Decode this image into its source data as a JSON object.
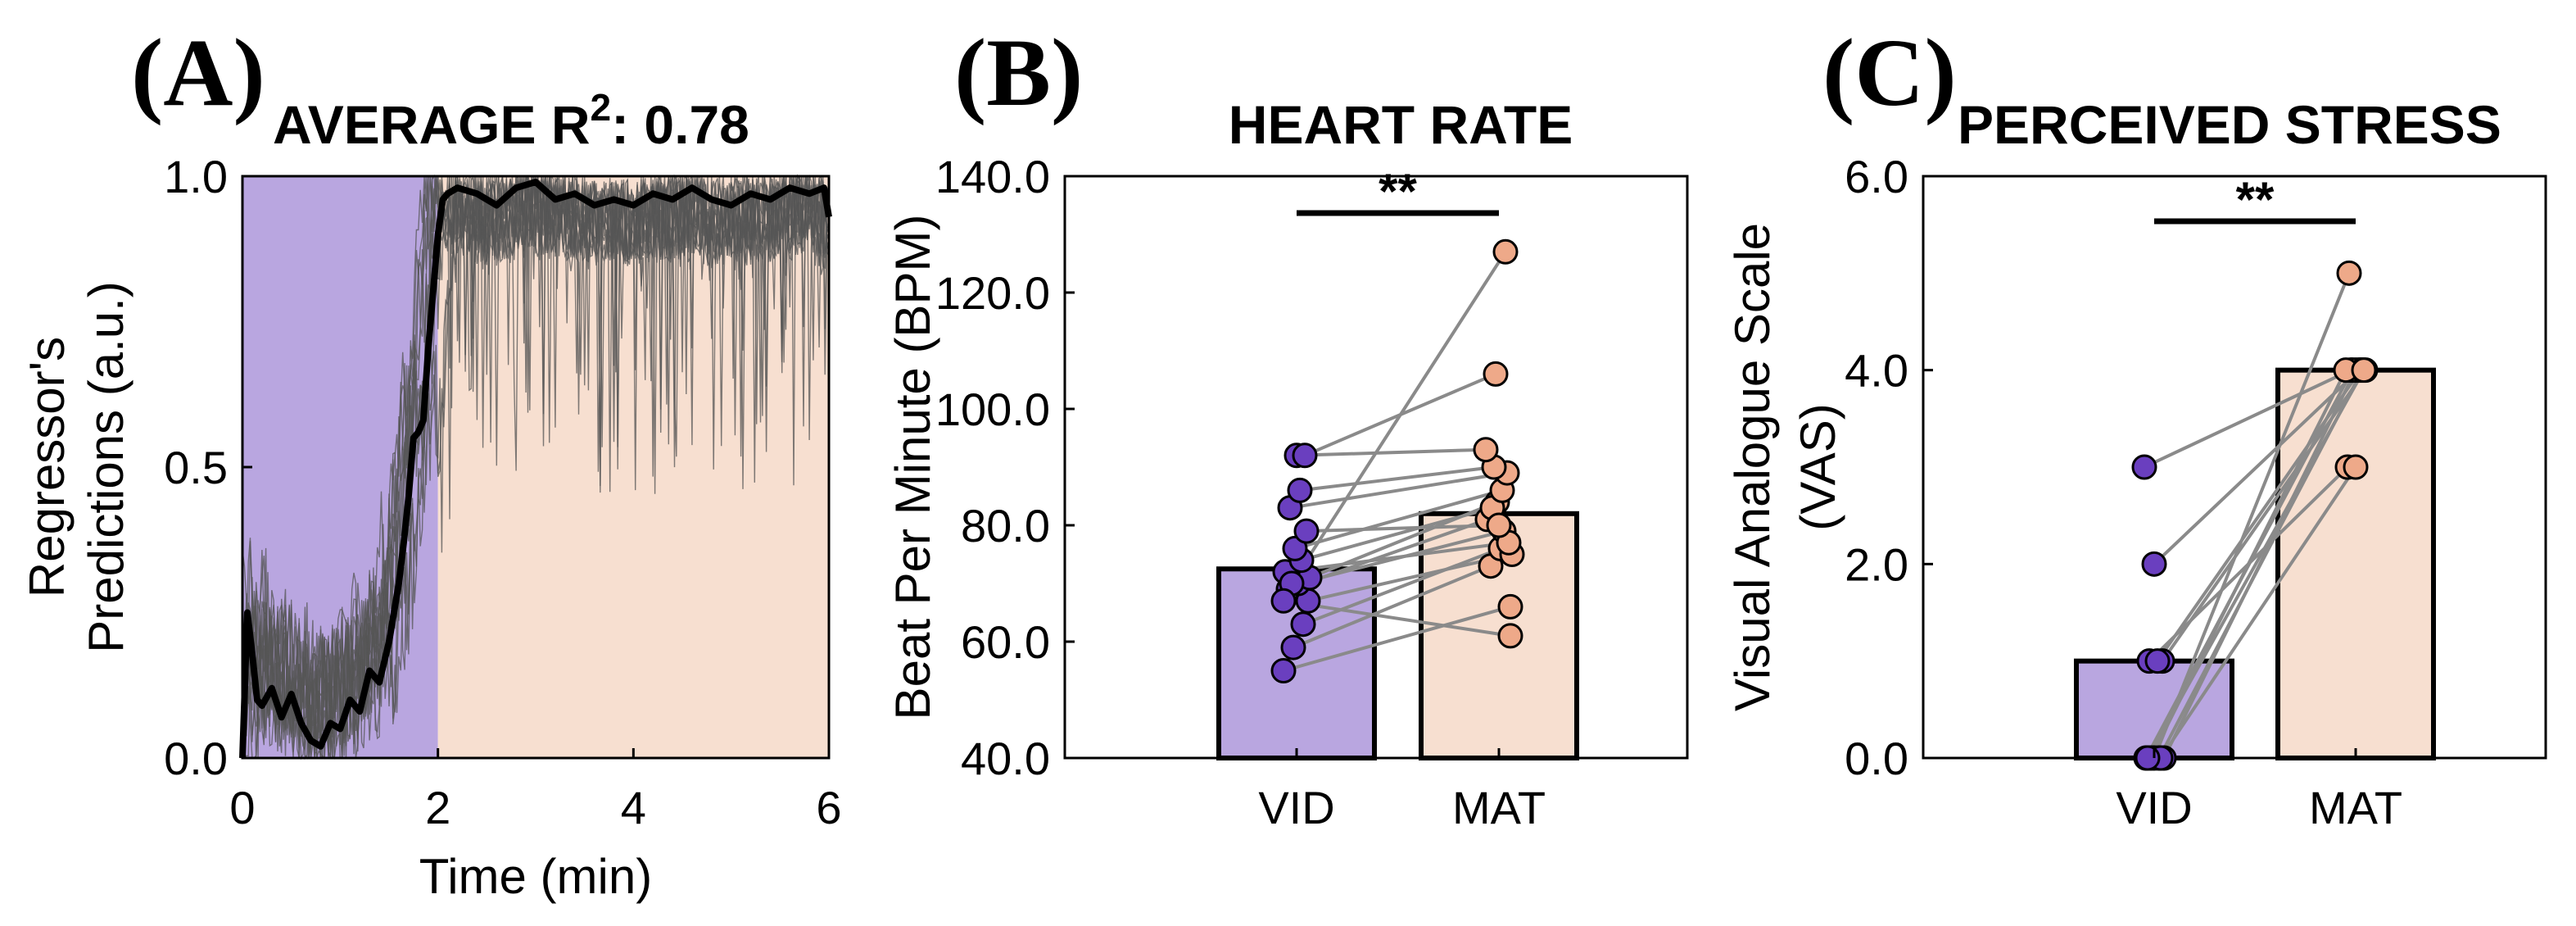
{
  "colors": {
    "vid_fill": "#b9a6e0",
    "mat_fill": "#f7dfd0",
    "vid_marker": "#6a3fbf",
    "mat_marker": "#eea989",
    "trace_gray": "#555555",
    "pair_line": "#8a8a8a",
    "mean_line": "#000000"
  },
  "chart_data": [
    {
      "type": "line",
      "panel_label": "(A)",
      "title": "AVERAGE R",
      "title_sup": "2",
      "title_suffix": ": 0.78",
      "xlabel": "Time (min)",
      "ylabel_line1": "Regressor's",
      "ylabel_line2": "Predictions (a.u.)",
      "xlim": [
        0,
        6
      ],
      "ylim": [
        0,
        1
      ],
      "xticks": [
        0,
        2,
        4,
        6
      ],
      "xtick_labels": [
        "0",
        "2",
        "4",
        "6"
      ],
      "yticks": [
        0,
        0.5,
        1
      ],
      "ytick_labels": [
        "0.0",
        "0.5",
        "1.0"
      ],
      "regions": [
        {
          "name": "VID",
          "x0": 0,
          "x1": 2
        },
        {
          "name": "MAT",
          "x0": 2,
          "x1": 6
        }
      ],
      "mean_series": {
        "name": "Average",
        "x": [
          0,
          0.05,
          0.1,
          0.15,
          0.2,
          0.3,
          0.4,
          0.5,
          0.6,
          0.7,
          0.8,
          0.9,
          1.0,
          1.1,
          1.2,
          1.3,
          1.4,
          1.5,
          1.6,
          1.65,
          1.7,
          1.75,
          1.8,
          1.85,
          1.9,
          1.95,
          2.0,
          2.05,
          2.1,
          2.2,
          2.4,
          2.6,
          2.8,
          3.0,
          3.2,
          3.4,
          3.6,
          3.8,
          4.0,
          4.2,
          4.4,
          4.6,
          4.8,
          5.0,
          5.2,
          5.4,
          5.6,
          5.8,
          5.95,
          6.0
        ],
        "y": [
          0.0,
          0.25,
          0.18,
          0.1,
          0.09,
          0.12,
          0.07,
          0.11,
          0.06,
          0.03,
          0.02,
          0.06,
          0.05,
          0.1,
          0.08,
          0.15,
          0.13,
          0.2,
          0.3,
          0.37,
          0.45,
          0.55,
          0.56,
          0.58,
          0.7,
          0.8,
          0.9,
          0.96,
          0.97,
          0.98,
          0.97,
          0.95,
          0.98,
          0.99,
          0.96,
          0.97,
          0.95,
          0.96,
          0.95,
          0.97,
          0.96,
          0.98,
          0.96,
          0.95,
          0.97,
          0.96,
          0.98,
          0.97,
          0.98,
          0.93
        ]
      },
      "individual_traces_note": "thin gray per-subject traces between 0 and 1"
    },
    {
      "type": "bar",
      "panel_label": "(B)",
      "title": "HEART RATE",
      "ylabel": "Beat Per Minute (BPM)",
      "categories": [
        "VID",
        "MAT"
      ],
      "values": [
        72.5,
        82.0
      ],
      "ylim": [
        40,
        140
      ],
      "yticks": [
        40,
        60,
        80,
        100,
        120,
        140
      ],
      "ytick_labels": [
        "40.0",
        "60.0",
        "80.0",
        "100.0",
        "120.0",
        "140.0"
      ],
      "significance": "**",
      "pairs": [
        [
          55,
          66
        ],
        [
          59,
          73
        ],
        [
          63,
          76
        ],
        [
          67,
          75
        ],
        [
          69,
          81
        ],
        [
          70,
          79
        ],
        [
          71,
          84
        ],
        [
          72,
          77
        ],
        [
          74,
          83
        ],
        [
          76,
          86
        ],
        [
          79,
          80
        ],
        [
          83,
          89
        ],
        [
          86,
          90
        ],
        [
          92,
          93
        ],
        [
          92,
          106
        ],
        [
          70,
          127
        ],
        [
          67,
          61
        ]
      ]
    },
    {
      "type": "bar",
      "panel_label": "(C)",
      "title": "PERCEIVED STRESS",
      "ylabel_line1": "Visual Analogue Scale",
      "ylabel_line2": "(VAS)",
      "categories": [
        "VID",
        "MAT"
      ],
      "values": [
        1.0,
        4.0
      ],
      "ylim": [
        0,
        6
      ],
      "yticks": [
        0,
        2,
        4,
        6
      ],
      "ytick_labels": [
        "0.0",
        "2.0",
        "4.0",
        "6.0"
      ],
      "significance": "**",
      "pairs": [
        [
          3,
          4
        ],
        [
          2,
          4
        ],
        [
          1,
          4
        ],
        [
          1,
          3
        ],
        [
          1,
          4
        ],
        [
          0,
          4
        ],
        [
          0,
          4
        ],
        [
          0,
          4
        ],
        [
          0,
          5
        ],
        [
          0,
          4
        ],
        [
          0,
          3
        ],
        [
          0,
          4
        ]
      ]
    }
  ]
}
